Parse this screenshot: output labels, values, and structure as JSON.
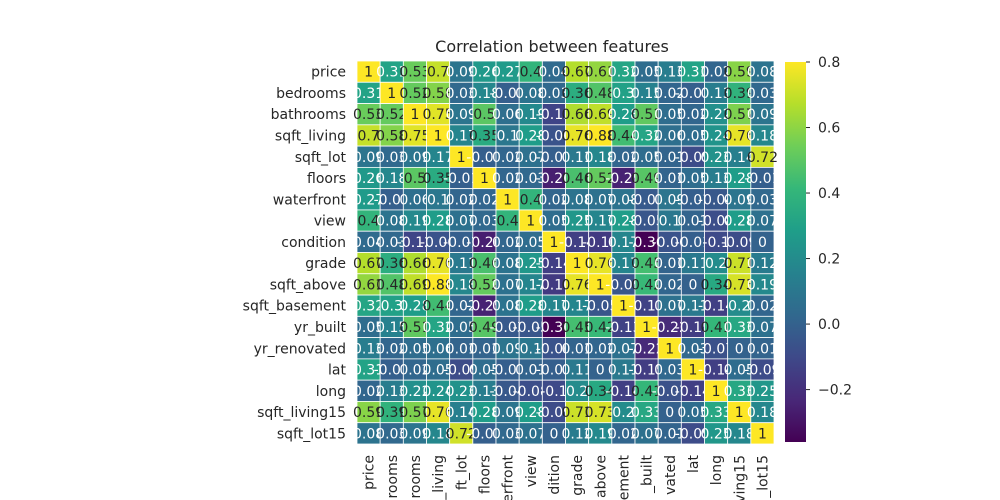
{
  "chart_data": {
    "type": "heatmap",
    "title": "Correlation between features",
    "labels": [
      "price",
      "bedrooms",
      "bathrooms",
      "sqft_living",
      "sqft_lot",
      "floors",
      "waterfront",
      "view",
      "condition",
      "grade",
      "sqft_above",
      "sqft_basement",
      "yr_built",
      "yr_renovated",
      "lat",
      "long",
      "sqft_living15",
      "sqft_lot15"
    ],
    "x_tick_labels": [
      "price",
      "rooms",
      "rooms",
      "_living",
      "ft_lot",
      "floors",
      "erfront",
      "view",
      "dition",
      "grade",
      "above",
      "ement",
      "_built",
      "vated",
      "lat",
      "long",
      "ving15",
      "_lot15"
    ],
    "matrix": [
      [
        1,
        0.31,
        0.53,
        0.7,
        0.09,
        0.26,
        0.27,
        0.4,
        0.04,
        0.67,
        0.61,
        0.32,
        0.05,
        0.13,
        0.31,
        0.02,
        0.59,
        0.08
      ],
      [
        0.31,
        1,
        0.52,
        0.58,
        0.03,
        0.18,
        -0.01,
        0.08,
        0.03,
        0.36,
        0.48,
        0.3,
        0.15,
        0.02,
        -0.01,
        0.13,
        0.39,
        0.03
      ],
      [
        0.53,
        0.52,
        1,
        0.75,
        0.09,
        0.5,
        0.06,
        0.19,
        -0.12,
        0.66,
        0.69,
        0.28,
        0.51,
        0.05,
        0.02,
        0.22,
        0.57,
        0.09
      ],
      [
        0.7,
        0.58,
        0.75,
        1,
        0.17,
        0.35,
        0.1,
        0.28,
        -0.06,
        0.76,
        0.88,
        0.44,
        0.32,
        0.06,
        0.05,
        0.24,
        0.76,
        0.18
      ],
      [
        0.09,
        0.03,
        0.09,
        0.17,
        1,
        -0.01,
        0.02,
        0.07,
        -0.01,
        0.11,
        0.18,
        0.02,
        0.05,
        0.01,
        -0.09,
        0.23,
        0.14,
        0.72
      ],
      [
        0.26,
        0.18,
        0.5,
        0.35,
        -0.01,
        1,
        0.02,
        0.03,
        -0.26,
        0.46,
        0.52,
        -0.25,
        0.49,
        0.01,
        0.05,
        0.13,
        0.28,
        -0.01
      ],
      [
        0.27,
        -0.01,
        0.06,
        0.1,
        0.02,
        0.02,
        1,
        0.4,
        0.02,
        0.08,
        0.07,
        0.08,
        -0.03,
        0.09,
        -0.01,
        -0.04,
        0.09,
        0.03
      ],
      [
        0.4,
        0.08,
        0.19,
        0.28,
        0.07,
        0.03,
        0.4,
        1,
        0.05,
        0.25,
        0.17,
        0.28,
        -0.05,
        0.1,
        0.01,
        -0.08,
        0.28,
        0.07
      ],
      [
        0.04,
        0.03,
        -0.12,
        -0.06,
        -0.01,
        -0.26,
        0.02,
        0.05,
        1,
        -0.14,
        -0.16,
        0.17,
        -0.36,
        -0.06,
        -0.01,
        -0.1,
        -0.09,
        -0.0
      ],
      [
        0.67,
        0.36,
        0.66,
        0.76,
        0.11,
        0.46,
        0.08,
        0.25,
        -0.14,
        1,
        0.76,
        0.17,
        0.45,
        0.01,
        0.11,
        0.2,
        0.71,
        0.12
      ],
      [
        0.61,
        0.48,
        0.69,
        0.88,
        0.18,
        0.52,
        0.07,
        0.17,
        -0.16,
        0.76,
        1,
        -0.05,
        0.42,
        0.02,
        -0.0,
        0.34,
        0.73,
        0.19
      ],
      [
        0.32,
        0.3,
        0.28,
        0.44,
        0.02,
        -0.25,
        0.08,
        0.28,
        0.17,
        0.17,
        -0.05,
        1,
        -0.13,
        0.07,
        0.11,
        -0.14,
        0.2,
        0.02
      ],
      [
        0.05,
        0.15,
        0.51,
        0.32,
        0.05,
        0.49,
        -0.03,
        -0.05,
        -0.36,
        0.45,
        0.42,
        -0.13,
        1,
        -0.22,
        -0.15,
        0.41,
        0.33,
        0.07
      ],
      [
        0.13,
        0.02,
        0.05,
        0.06,
        0.01,
        0.01,
        0.09,
        0.1,
        -0.06,
        0.01,
        0.02,
        0.07,
        -0.22,
        1,
        0.03,
        -0.07,
        -0.0,
        0.01
      ],
      [
        0.31,
        -0.01,
        0.02,
        0.05,
        -0.09,
        0.05,
        -0.01,
        0.01,
        -0.01,
        0.11,
        -0.0,
        0.11,
        -0.15,
        0.03,
        1,
        -0.14,
        0.05,
        -0.09
      ],
      [
        0.02,
        0.13,
        0.22,
        0.24,
        0.23,
        0.13,
        -0.04,
        -0.08,
        -0.1,
        0.2,
        0.34,
        -0.14,
        0.41,
        -0.07,
        -0.14,
        1,
        0.33,
        0.25
      ],
      [
        0.59,
        0.39,
        0.57,
        0.76,
        0.14,
        0.28,
        0.09,
        0.28,
        -0.09,
        0.71,
        0.73,
        0.2,
        0.33,
        -0.0,
        0.05,
        0.33,
        1,
        0.18
      ],
      [
        0.08,
        0.03,
        0.09,
        0.18,
        0.72,
        -0.01,
        0.03,
        0.07,
        -0.0,
        0.12,
        0.19,
        0.02,
        0.07,
        0.01,
        -0.09,
        0.25,
        0.18,
        1
      ]
    ],
    "colormap": "viridis",
    "color_range": [
      -0.36,
      0.8
    ],
    "colorbar_ticks": [
      -0.2,
      0.0,
      0.2,
      0.4,
      0.6,
      0.8
    ],
    "colorbar_tick_labels": [
      "−0.2",
      "0.0",
      "0.2",
      "0.4",
      "0.6",
      "0.8"
    ],
    "grid": false,
    "colors": {
      "viridis": [
        "#440154",
        "#482878",
        "#3e4989",
        "#31688e",
        "#26828e",
        "#1f9e89",
        "#35b779",
        "#6ece58",
        "#b5de2b",
        "#fde725"
      ],
      "cell_border": "#ffffff",
      "text": "#262626"
    }
  }
}
